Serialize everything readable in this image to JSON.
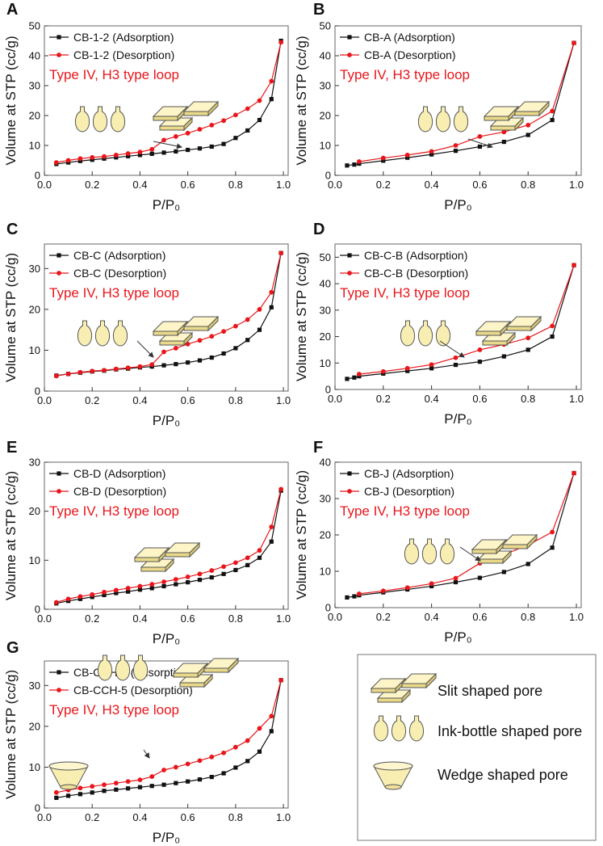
{
  "styles": {
    "ads_color": "#111111",
    "des_color": "#e8161b",
    "pore_fill": "#f8eeb2",
    "pore_stroke": "#555555",
    "annotation_color": "#e8161b"
  },
  "chart_data": [
    {
      "panel": "A",
      "type": "line",
      "xlabel": "P/P₀",
      "ylabel": "Volume at STP (cc/g)",
      "xlim": [
        0,
        1.02
      ],
      "ylim": [
        0,
        50
      ],
      "xticks": [
        "0.0",
        "0.2",
        "0.4",
        "0.6",
        "0.8",
        "1.0"
      ],
      "yticks": [
        "0",
        "10",
        "20",
        "30",
        "40",
        "50"
      ],
      "annotation": "Type IV, H3 type loop",
      "series": [
        {
          "name": "CB-1-2 (Adsorption)",
          "x": [
            0.05,
            0.1,
            0.15,
            0.2,
            0.25,
            0.3,
            0.35,
            0.4,
            0.45,
            0.5,
            0.55,
            0.6,
            0.65,
            0.7,
            0.75,
            0.8,
            0.85,
            0.9,
            0.95,
            0.99
          ],
          "y": [
            3.8,
            4.3,
            4.8,
            5.2,
            5.6,
            6.0,
            6.4,
            6.8,
            7.2,
            7.6,
            8.0,
            8.5,
            9.0,
            9.6,
            10.5,
            12.5,
            15.0,
            18.5,
            25.5,
            45.0
          ]
        },
        {
          "name": "CB-1-2 (Desorption)",
          "x": [
            0.05,
            0.1,
            0.15,
            0.2,
            0.25,
            0.3,
            0.35,
            0.4,
            0.45,
            0.5,
            0.55,
            0.6,
            0.65,
            0.7,
            0.75,
            0.8,
            0.85,
            0.9,
            0.95,
            0.99
          ],
          "y": [
            4.3,
            5.0,
            5.6,
            6.0,
            6.3,
            6.8,
            7.3,
            7.8,
            8.7,
            11.8,
            13.0,
            14.1,
            15.4,
            16.8,
            18.3,
            20.2,
            22.3,
            25.0,
            31.5,
            44.5
          ]
        }
      ]
    },
    {
      "panel": "B",
      "type": "line",
      "xlabel": "P/P₀",
      "ylabel": "Volume at STP (cc/g)",
      "xlim": [
        0,
        1.02
      ],
      "ylim": [
        0,
        50
      ],
      "xticks": [
        "0.0",
        "0.2",
        "0.4",
        "0.6",
        "0.8",
        "1.0"
      ],
      "yticks": [
        "0",
        "10",
        "20",
        "30",
        "40",
        "50"
      ],
      "annotation": "Type IV, H3 type loop",
      "series": [
        {
          "name": "CB-A (Adsorption)",
          "x": [
            0.05,
            0.08,
            0.1,
            0.2,
            0.3,
            0.4,
            0.5,
            0.6,
            0.7,
            0.8,
            0.9,
            0.99
          ],
          "y": [
            3.3,
            3.6,
            3.9,
            4.9,
            5.9,
            7.0,
            8.2,
            9.6,
            11.2,
            13.5,
            18.5,
            44.3
          ]
        },
        {
          "name": "CB-A (Desorption)",
          "x": [
            0.1,
            0.2,
            0.3,
            0.4,
            0.5,
            0.6,
            0.7,
            0.8,
            0.9,
            0.99
          ],
          "y": [
            4.6,
            5.8,
            6.8,
            8.0,
            10.0,
            13.0,
            14.5,
            16.8,
            21.5,
            44.3
          ]
        }
      ]
    },
    {
      "panel": "C",
      "type": "line",
      "xlabel": "P/P₀",
      "ylabel": "Volume at STP (cc/g)",
      "xlim": [
        0,
        1.02
      ],
      "ylim": [
        0,
        36
      ],
      "xticks": [
        "0.0",
        "0.2",
        "0.4",
        "0.6",
        "0.8",
        "1.0"
      ],
      "yticks": [
        "0",
        "10",
        "20",
        "30"
      ],
      "annotation": "Type IV, H3 type loop",
      "series": [
        {
          "name": "CB-C (Adsorption)",
          "x": [
            0.05,
            0.1,
            0.15,
            0.2,
            0.25,
            0.3,
            0.35,
            0.4,
            0.45,
            0.5,
            0.55,
            0.6,
            0.65,
            0.7,
            0.75,
            0.8,
            0.85,
            0.9,
            0.95,
            0.99
          ],
          "y": [
            3.8,
            4.2,
            4.5,
            4.8,
            5.0,
            5.3,
            5.5,
            5.8,
            6.0,
            6.3,
            6.6,
            7.0,
            7.5,
            8.2,
            9.2,
            10.5,
            12.5,
            15.0,
            20.5,
            33.8
          ]
        },
        {
          "name": "CB-C (Desorption)",
          "x": [
            0.05,
            0.1,
            0.15,
            0.2,
            0.25,
            0.3,
            0.35,
            0.4,
            0.45,
            0.5,
            0.55,
            0.6,
            0.65,
            0.7,
            0.75,
            0.8,
            0.85,
            0.9,
            0.95,
            0.99
          ],
          "y": [
            3.7,
            4.2,
            4.6,
            4.9,
            5.1,
            5.4,
            5.7,
            6.0,
            6.5,
            9.6,
            10.5,
            11.5,
            12.4,
            13.4,
            14.6,
            15.9,
            17.5,
            20.0,
            24.2,
            33.8
          ]
        }
      ]
    },
    {
      "panel": "D",
      "type": "line",
      "xlabel": "P/P₀",
      "ylabel": "Volume at STP (cc/g)",
      "xlim": [
        0,
        1.02
      ],
      "ylim": [
        0,
        55
      ],
      "xticks": [
        "0.0",
        "0.2",
        "0.4",
        "0.6",
        "0.8",
        "1.0"
      ],
      "yticks": [
        "0",
        "10",
        "20",
        "30",
        "40",
        "50"
      ],
      "annotation": "Type IV, H3 type loop",
      "series": [
        {
          "name": "CB-C-B (Adsorption)",
          "x": [
            0.05,
            0.08,
            0.1,
            0.2,
            0.3,
            0.4,
            0.5,
            0.6,
            0.7,
            0.8,
            0.9,
            0.99
          ],
          "y": [
            4.0,
            4.5,
            5.0,
            6.0,
            7.0,
            8.0,
            9.3,
            10.5,
            12.5,
            15.0,
            20.0,
            47.0
          ]
        },
        {
          "name": "CB-C-B (Desorption)",
          "x": [
            0.1,
            0.2,
            0.3,
            0.4,
            0.5,
            0.6,
            0.7,
            0.8,
            0.9,
            0.99
          ],
          "y": [
            5.8,
            6.8,
            8.0,
            9.4,
            12.0,
            15.0,
            17.0,
            19.5,
            24.0,
            47.0
          ]
        }
      ]
    },
    {
      "panel": "E",
      "type": "line",
      "xlabel": "P/P₀",
      "ylabel": "Volume at STP (cc/g)",
      "xlim": [
        0,
        1.02
      ],
      "ylim": [
        0,
        30
      ],
      "xticks": [
        "0.0",
        "0.2",
        "0.4",
        "0.6",
        "0.8",
        "1.0"
      ],
      "yticks": [
        "0",
        "10",
        "20",
        "30"
      ],
      "annotation": "Type IV, H3 type loop",
      "series": [
        {
          "name": "CB-D (Adsorption)",
          "x": [
            0.05,
            0.1,
            0.15,
            0.2,
            0.25,
            0.3,
            0.35,
            0.4,
            0.45,
            0.5,
            0.55,
            0.6,
            0.65,
            0.7,
            0.75,
            0.8,
            0.85,
            0.9,
            0.95,
            0.99
          ],
          "y": [
            1.2,
            1.7,
            2.1,
            2.5,
            2.9,
            3.3,
            3.6,
            4.0,
            4.3,
            4.7,
            5.1,
            5.5,
            6.0,
            6.5,
            7.2,
            8.0,
            9.0,
            10.5,
            13.8,
            24.2
          ]
        },
        {
          "name": "CB-D (Desorption)",
          "x": [
            0.05,
            0.1,
            0.15,
            0.2,
            0.25,
            0.3,
            0.35,
            0.4,
            0.45,
            0.5,
            0.55,
            0.6,
            0.65,
            0.7,
            0.75,
            0.8,
            0.85,
            0.9,
            0.95,
            0.99
          ],
          "y": [
            1.4,
            2.1,
            2.6,
            3.0,
            3.5,
            3.9,
            4.3,
            4.7,
            5.1,
            5.6,
            6.1,
            6.6,
            7.2,
            7.9,
            8.7,
            9.5,
            10.5,
            12.0,
            16.8,
            24.5
          ]
        }
      ]
    },
    {
      "panel": "F",
      "type": "line",
      "xlabel": "P/P₀",
      "ylabel": "Volume at STP (cc/g)",
      "xlim": [
        0,
        1.02
      ],
      "ylim": [
        0,
        40
      ],
      "xticks": [
        "0.0",
        "0.2",
        "0.4",
        "0.6",
        "0.8",
        "1.0"
      ],
      "yticks": [
        "0",
        "10",
        "20",
        "30",
        "40"
      ],
      "annotation": "Type IV, H3 type loop",
      "series": [
        {
          "name": "CB-J (Adsorption)",
          "x": [
            0.05,
            0.08,
            0.1,
            0.2,
            0.3,
            0.4,
            0.5,
            0.6,
            0.7,
            0.8,
            0.9,
            0.99
          ],
          "y": [
            2.8,
            3.1,
            3.4,
            4.2,
            5.0,
            5.9,
            7.0,
            8.2,
            9.8,
            12.0,
            16.5,
            37.0
          ]
        },
        {
          "name": "CB-J (Desorption)",
          "x": [
            0.1,
            0.2,
            0.3,
            0.4,
            0.5,
            0.6,
            0.7,
            0.8,
            0.9,
            0.99
          ],
          "y": [
            3.8,
            4.6,
            5.5,
            6.6,
            8.1,
            12.2,
            14.6,
            17.2,
            20.8,
            37.0
          ]
        }
      ]
    },
    {
      "panel": "G",
      "type": "line",
      "xlabel": "P/P₀",
      "ylabel": "Volume at STP (cc/g)",
      "xlim": [
        0,
        1.02
      ],
      "ylim": [
        0,
        36
      ],
      "xticks": [
        "0.0",
        "0.2",
        "0.4",
        "0.6",
        "0.8",
        "1.0"
      ],
      "yticks": [
        "0",
        "10",
        "20",
        "30"
      ],
      "annotation": "Type IV, H3 type loop",
      "series": [
        {
          "name": "CB-CCH-5 (Adsorption)",
          "x": [
            0.05,
            0.1,
            0.15,
            0.2,
            0.25,
            0.3,
            0.35,
            0.4,
            0.45,
            0.5,
            0.55,
            0.6,
            0.65,
            0.7,
            0.75,
            0.8,
            0.85,
            0.9,
            0.95,
            0.99
          ],
          "y": [
            2.5,
            3.0,
            3.4,
            3.8,
            4.2,
            4.5,
            4.8,
            5.1,
            5.4,
            5.7,
            6.1,
            6.5,
            7.0,
            7.6,
            8.5,
            9.9,
            11.5,
            13.8,
            18.8,
            31.3
          ]
        },
        {
          "name": "CB-CCH-5 (Desorption)",
          "x": [
            0.05,
            0.1,
            0.15,
            0.2,
            0.25,
            0.3,
            0.35,
            0.4,
            0.45,
            0.5,
            0.55,
            0.6,
            0.65,
            0.7,
            0.75,
            0.8,
            0.85,
            0.9,
            0.95,
            0.99
          ],
          "y": [
            3.8,
            4.4,
            4.9,
            5.3,
            5.7,
            6.1,
            6.5,
            6.9,
            7.7,
            9.3,
            10.0,
            10.8,
            11.6,
            12.5,
            13.5,
            14.9,
            16.5,
            19.5,
            22.5,
            31.3
          ]
        }
      ]
    }
  ],
  "legend_box": {
    "items": [
      {
        "label": "Slit shaped pore",
        "icon": "slit-pore-icon"
      },
      {
        "label": "Ink-bottle shaped pore",
        "icon": "ink-bottle-pore-icon"
      },
      {
        "label": "Wedge shaped pore",
        "icon": "wedge-pore-icon"
      }
    ]
  }
}
